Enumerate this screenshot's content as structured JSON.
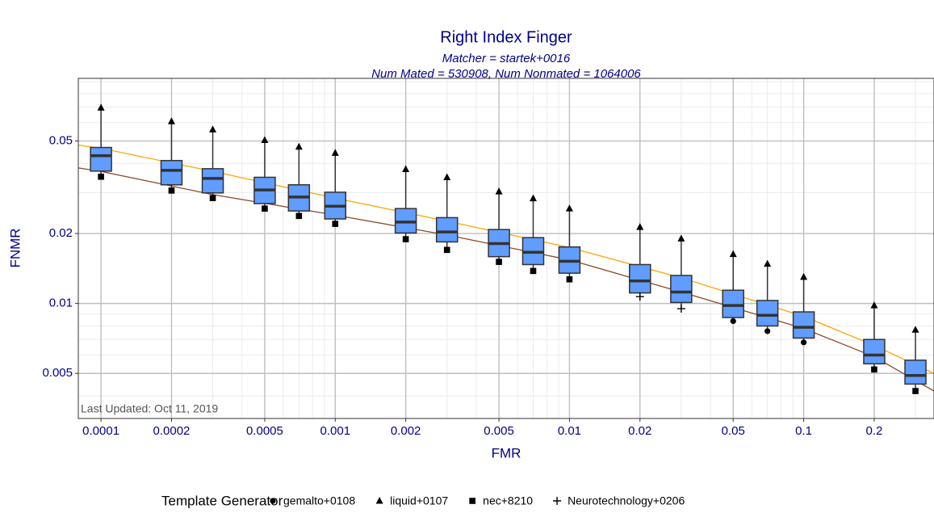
{
  "chart_data": {
    "type": "box",
    "title": "Right Index Finger",
    "subtitle": [
      "Matcher = startek+0016",
      "Num Mated = 530908, Num Nonmated = 1064006"
    ],
    "xlabel": "FMR",
    "ylabel": "FNMR",
    "annotation": "Last Updated: Oct 11, 2019",
    "legend_title": "Template Generator",
    "xlog": true,
    "ylog": true,
    "grid": true,
    "xlim": [
      8e-05,
      0.36
    ],
    "ylim": [
      0.0032,
      0.093
    ],
    "xticks": [
      0.0001,
      0.0002,
      0.0005,
      0.001,
      0.002,
      0.005,
      0.01,
      0.02,
      0.05,
      0.1,
      0.2
    ],
    "yticks": [
      0.005,
      0.01,
      0.02,
      0.05
    ],
    "xminorticks": [
      0.0003,
      0.0004,
      0.0006,
      0.0007,
      0.0008,
      0.0009,
      0.003,
      0.004,
      0.006,
      0.007,
      0.008,
      0.009,
      0.03,
      0.04,
      0.06,
      0.07,
      0.08,
      0.09,
      0.3
    ],
    "yminorticks": [
      0.004,
      0.006,
      0.007,
      0.008,
      0.009,
      0.03,
      0.04,
      0.06,
      0.07,
      0.08,
      0.09
    ],
    "box_color": "#619cff",
    "x": [
      0.0001,
      0.0002,
      0.0003,
      0.0005,
      0.0007,
      0.001,
      0.002,
      0.003,
      0.005,
      0.007,
      0.01,
      0.02,
      0.03,
      0.05,
      0.07,
      0.1,
      0.2,
      0.3
    ],
    "q1": [
      0.0371,
      0.0324,
      0.0299,
      0.0269,
      0.025,
      0.0231,
      0.0201,
      0.0184,
      0.0159,
      0.0147,
      0.0135,
      0.0111,
      0.0101,
      0.0087,
      0.008,
      0.0071,
      0.0055,
      0.0045
    ],
    "median": [
      0.0432,
      0.0374,
      0.0345,
      0.0308,
      0.0287,
      0.0262,
      0.0224,
      0.0203,
      0.0181,
      0.0166,
      0.0152,
      0.0125,
      0.0112,
      0.0098,
      0.0089,
      0.0079,
      0.006,
      0.0049
    ],
    "q3": [
      0.0469,
      0.0412,
      0.038,
      0.0349,
      0.0324,
      0.0301,
      0.0256,
      0.0234,
      0.0208,
      0.0192,
      0.0175,
      0.0147,
      0.0132,
      0.0114,
      0.0103,
      0.0092,
      0.007,
      0.0057
    ],
    "points": [
      {
        "name": "gemalto+0108",
        "shape": "circle",
        "values": [
          null,
          null,
          null,
          null,
          null,
          null,
          null,
          null,
          null,
          null,
          null,
          null,
          null,
          0.0084,
          0.0076,
          0.0068,
          null,
          null
        ]
      },
      {
        "name": "liquid+0107",
        "shape": "triangle",
        "values": [
          0.0695,
          0.0607,
          0.056,
          0.0504,
          0.0472,
          0.0444,
          0.0378,
          0.0349,
          0.0303,
          0.0283,
          0.0256,
          0.0213,
          0.019,
          0.0163,
          0.0148,
          0.013,
          0.0098,
          0.0077
        ]
      },
      {
        "name": "nec+8210",
        "shape": "square",
        "values": [
          0.0351,
          0.0306,
          0.0284,
          0.0256,
          0.0238,
          0.022,
          0.0189,
          0.017,
          0.0151,
          0.0138,
          0.0127,
          null,
          null,
          null,
          null,
          null,
          0.0052,
          0.0042
        ]
      },
      {
        "name": "Neurotechnology+0206",
        "shape": "plus",
        "values": [
          null,
          null,
          null,
          null,
          null,
          null,
          null,
          null,
          null,
          null,
          null,
          0.0107,
          0.0095,
          null,
          null,
          null,
          null,
          null
        ]
      }
    ],
    "lines": [
      {
        "color": "#ffa500",
        "x": [
          8e-05,
          0.0001,
          0.0003,
          0.001,
          0.003,
          0.01,
          0.03,
          0.1,
          0.2,
          0.36
        ],
        "values": [
          0.048,
          0.0465,
          0.037,
          0.0284,
          0.0226,
          0.0174,
          0.0129,
          0.0088,
          0.0066,
          0.005
        ]
      },
      {
        "color": "#8b4a2b",
        "x": [
          8e-05,
          0.0001,
          0.0003,
          0.001,
          0.003,
          0.01,
          0.03,
          0.1,
          0.2,
          0.36
        ],
        "values": [
          0.0383,
          0.037,
          0.0294,
          0.024,
          0.0197,
          0.0154,
          0.0112,
          0.0078,
          0.0059,
          0.0042
        ]
      }
    ]
  }
}
